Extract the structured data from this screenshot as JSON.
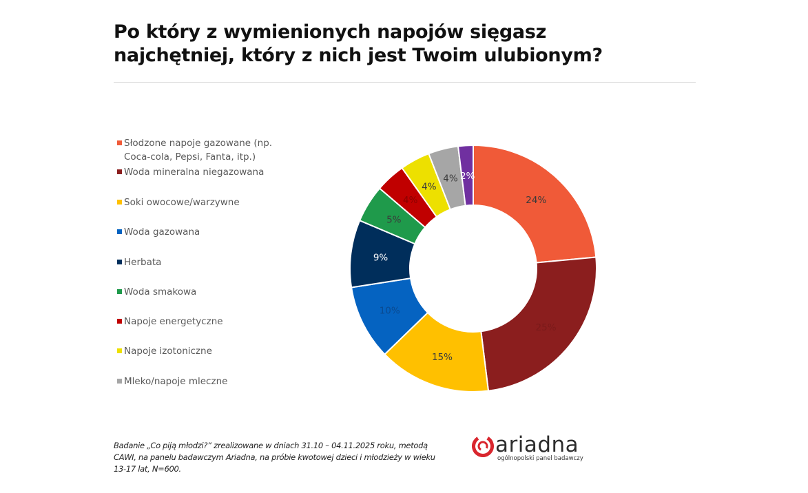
{
  "title": {
    "line1": "Po który z wymienionych napojów sięgasz",
    "line2": "najchętniej, który z nich jest Twoim ulubionym?"
  },
  "footnote": "Badanie „Co piją młodzi?” zrealizowane w dniach 31.10 – 04.11.2025 roku, metodą CAWI, na panelu badawczym Ariadna, na próbie kwotowej dzieci i młodzieży w wieku 13-17 lat, N=600.",
  "logo": {
    "name": "ariadna",
    "tagline": "ogólnopolski panel badawczy",
    "color": "#d9262e"
  },
  "chart_data": {
    "type": "pie",
    "donut": true,
    "title": "Po który z wymienionych napojów sięgasz najchętniej, który z nich jest Twoim ulubionym?",
    "legend_position": "left",
    "slices": [
      {
        "label": "Słodzone napoje gazowane (np. Coca-cola, Pepsi, Fanta, itp.)",
        "value": 24,
        "display": "24%",
        "color": "#f05a38",
        "label_color": "#3a3a3a"
      },
      {
        "label": "Woda mineralna niegazowana",
        "value": 25,
        "display": "25%",
        "color": "#8b1e1e",
        "label_color": "#7a1a1a"
      },
      {
        "label": "Soki owocowe/warzywne",
        "value": 15,
        "display": "15%",
        "color": "#ffc000",
        "label_color": "#3a3a3a"
      },
      {
        "label": "Woda gazowana",
        "value": 10,
        "display": "10%",
        "color": "#0563c1",
        "label_color": "#0a4a90"
      },
      {
        "label": "Herbata",
        "value": 9,
        "display": "9%",
        "color": "#002e5b",
        "label_color": "#ffffff"
      },
      {
        "label": "Woda smakowa",
        "value": 5,
        "display": "5%",
        "color": "#1f9a4b",
        "label_color": "#3a3a3a"
      },
      {
        "label": "Napoje energetyczne",
        "value": 4,
        "display": "4%",
        "color": "#c00000",
        "label_color": "#8a0000"
      },
      {
        "label": "Napoje izotoniczne",
        "value": 4,
        "display": "4%",
        "color": "#ede000",
        "label_color": "#3a3a3a"
      },
      {
        "label": "Mleko/napoje mleczne",
        "value": 4,
        "display": "4%",
        "color": "#a6a6a6",
        "label_color": "#3a3a3a"
      },
      {
        "label": "",
        "value": 2,
        "display": "2%",
        "color": "#7030a0",
        "label_color": "#ffffff"
      }
    ]
  }
}
